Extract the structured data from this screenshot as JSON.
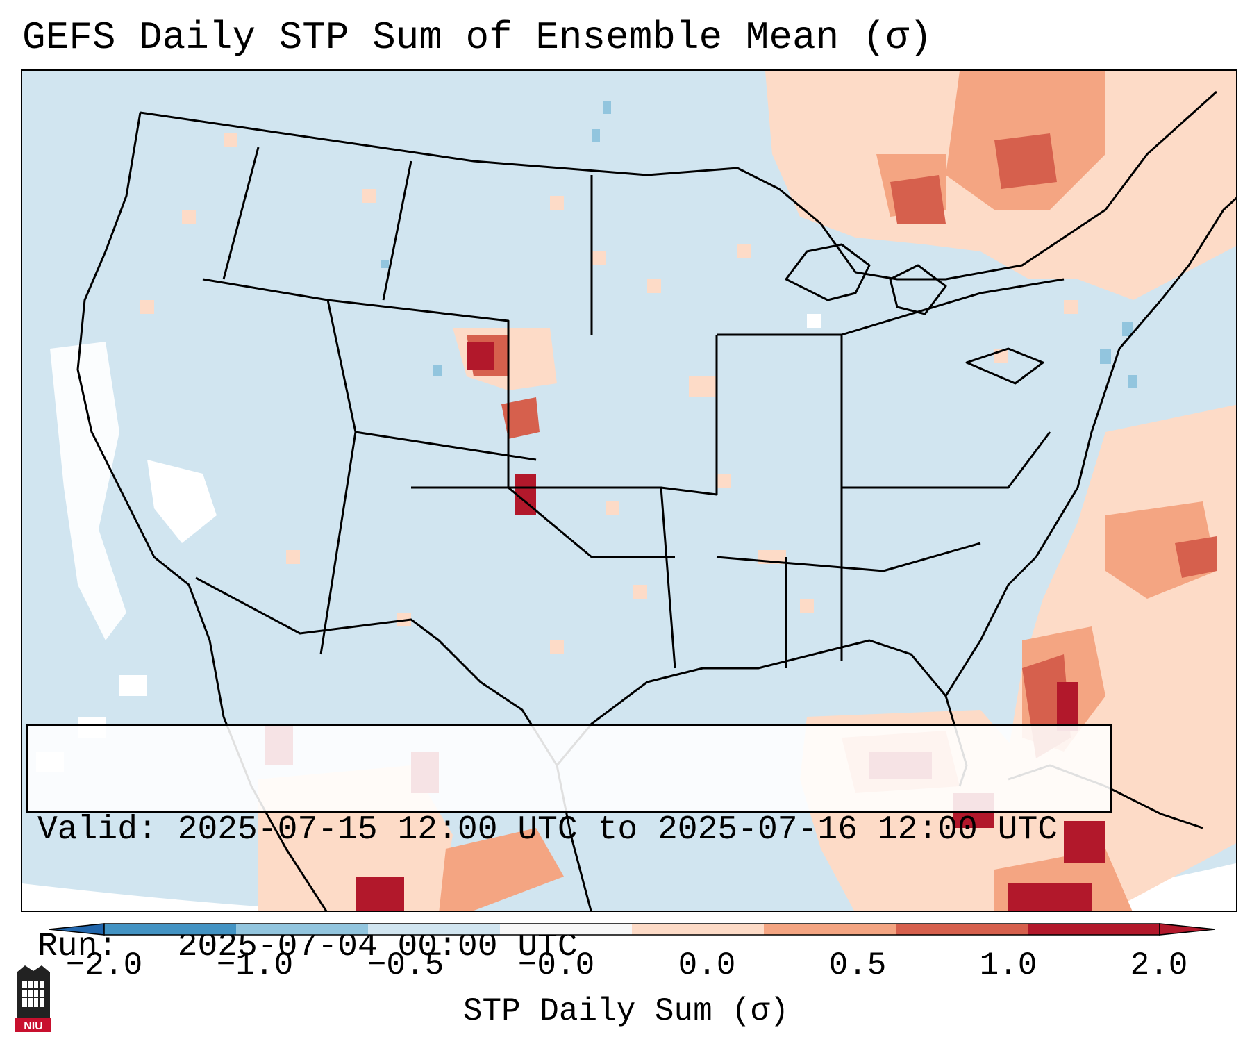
{
  "title": "GEFS Daily STP Sum of Ensemble Mean (σ)",
  "info": {
    "valid_label": "Valid:",
    "valid_value": "2025-07-15 12:00 UTC to 2025-07-16 12:00 UTC",
    "run_label": "Run:",
    "run_value": "2025-07-04 00:00 UTC"
  },
  "colorbar": {
    "label": "STP Daily Sum (σ)",
    "ticks": [
      "−2.0",
      "−1.0",
      "−0.5",
      "−0.0",
      "0.0",
      "0.5",
      "1.0",
      "2.0"
    ],
    "colors": [
      "#4393c3",
      "#92c5de",
      "#d1e5f0",
      "#f7f7f7",
      "#fddbc7",
      "#f4a582",
      "#d6604d",
      "#b2182b"
    ],
    "under_color": "#2166ac",
    "over_color": "#b2182b"
  },
  "map": {
    "background_color": "#d1e5f0",
    "outside_domain_color": "#ffffff",
    "border_color": "#000000"
  },
  "logo": {
    "text": "NIU",
    "icon": "university-tower-icon"
  }
}
